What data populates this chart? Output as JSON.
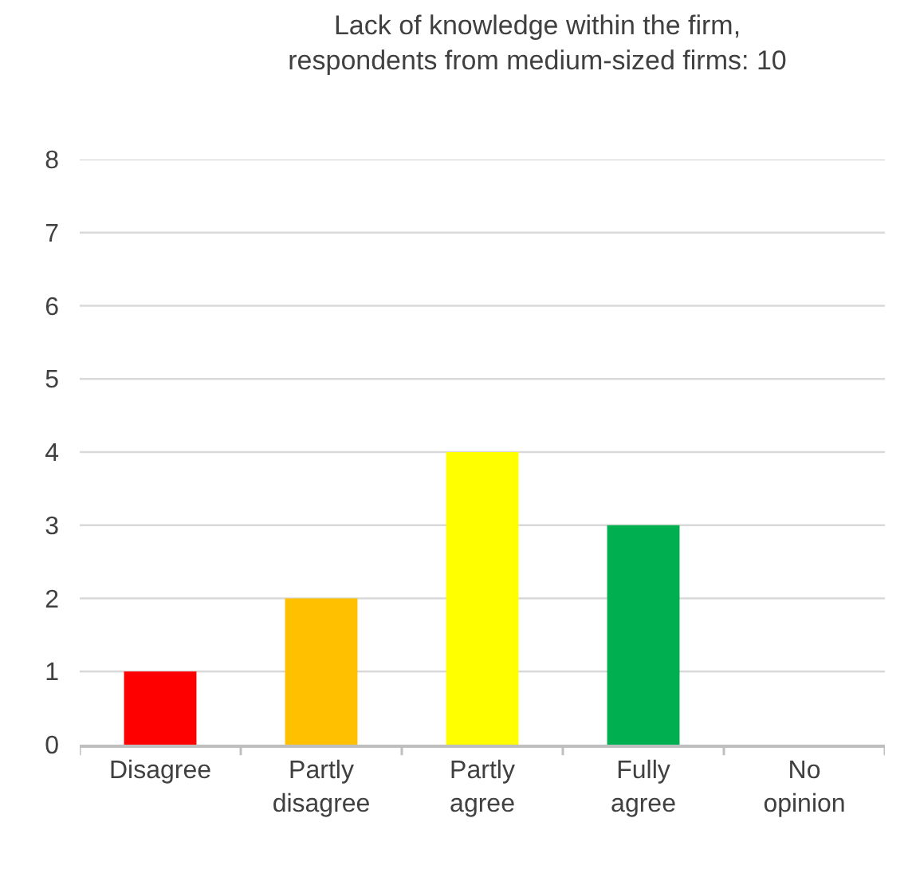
{
  "chart_data": {
    "type": "bar",
    "title": "Lack of knowledge within the firm,\nrespondents from medium-sized firms: 10",
    "categories": [
      "Disagree",
      "Partly disagree",
      "Partly agree",
      "Fully agree",
      "No opinion"
    ],
    "values": [
      1,
      2,
      4,
      3,
      0
    ],
    "colors": [
      "#ff0000",
      "#ffc000",
      "#ffff00",
      "#00b050",
      "#ffffff"
    ],
    "ylim": [
      0,
      8
    ],
    "yticks": [
      0,
      1,
      2,
      3,
      4,
      5,
      6,
      7,
      8
    ],
    "grid": "y"
  }
}
